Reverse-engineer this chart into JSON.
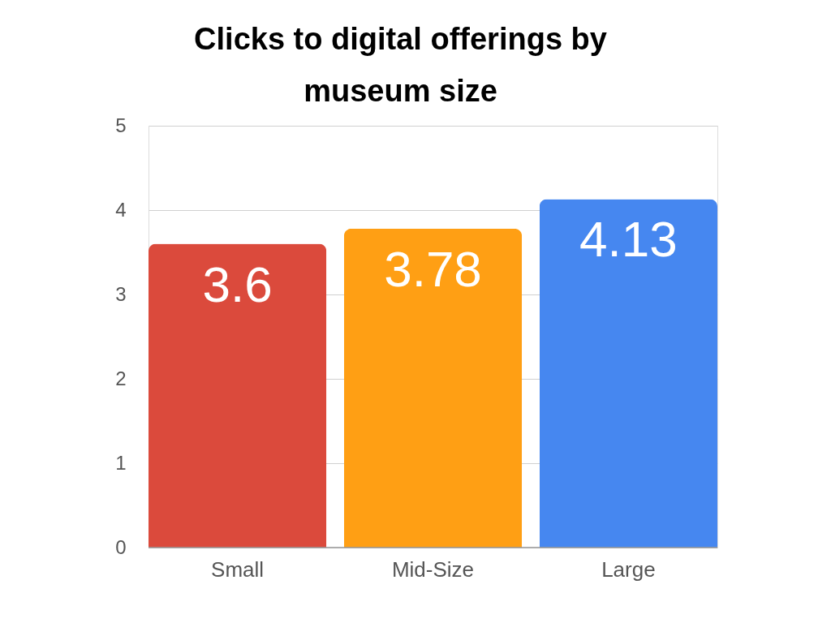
{
  "chart_data": {
    "type": "bar",
    "title": "Clicks to digital offerings by museum size",
    "categories": [
      "Small",
      "Mid-Size",
      "Large"
    ],
    "values": [
      3.6,
      3.78,
      4.13
    ],
    "colors": [
      "#db4a3c",
      "#ff9f14",
      "#4687f0"
    ],
    "ylim": [
      0,
      5
    ],
    "yticks": [
      0,
      1,
      2,
      3,
      4,
      5
    ],
    "grid": "y",
    "data_labels": true
  }
}
